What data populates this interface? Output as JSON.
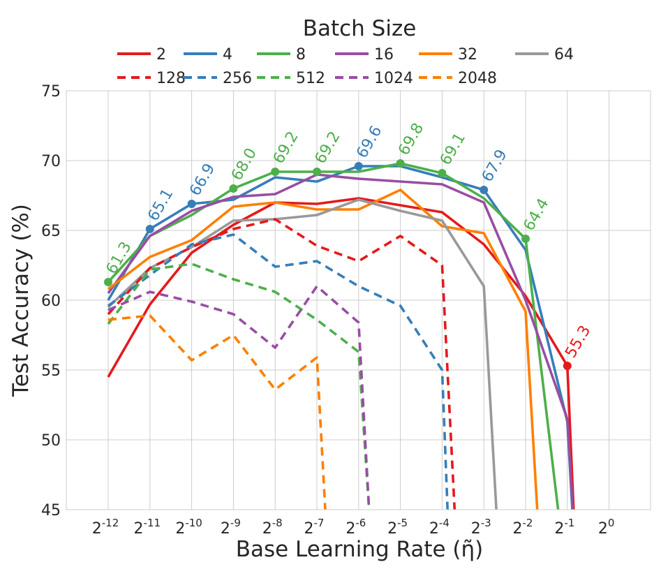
{
  "chart_data": {
    "type": "line",
    "xlabel": "Base Learning Rate (η̃)",
    "ylabel": "Test Accuracy (%)",
    "ylim": [
      45,
      75
    ],
    "yticks": [
      45,
      50,
      55,
      60,
      65,
      70,
      75
    ],
    "x_exponents": [
      -12,
      -11,
      -10,
      -9,
      -8,
      -7,
      -6,
      -5,
      -4,
      -3,
      -2,
      -1,
      0
    ],
    "x_tick_base": "2",
    "x_tick_exps": [
      "-12",
      "-11",
      "-10",
      "-9",
      "-8",
      "-7",
      "-6",
      "-5",
      "-4",
      "-3",
      "-2",
      "-1",
      "0"
    ],
    "grid": true,
    "legend_title": "Batch Size",
    "legend_position": "top",
    "series": [
      {
        "name": "2",
        "color": "#e41a1c",
        "dash": false,
        "x": [
          -12,
          -11,
          -10,
          -9,
          -8,
          -7,
          -6,
          -5,
          -4,
          -3,
          -2,
          -1,
          -0.85
        ],
        "y": [
          54.5,
          59.7,
          63.4,
          65.4,
          67.0,
          66.9,
          67.3,
          66.8,
          66.3,
          64.0,
          60.3,
          55.3,
          45
        ]
      },
      {
        "name": "4",
        "color": "#377eb8",
        "dash": false,
        "x": [
          -12,
          -11,
          -10,
          -9,
          -8,
          -7,
          -6,
          -5,
          -4,
          -3,
          -2,
          -1,
          -0.88
        ],
        "y": [
          60.0,
          65.1,
          66.9,
          67.2,
          68.8,
          68.5,
          69.6,
          69.6,
          68.8,
          67.9,
          63.6,
          51.3,
          45
        ]
      },
      {
        "name": "8",
        "color": "#4daf4a",
        "dash": false,
        "x": [
          -12,
          -11,
          -10,
          -9,
          -8,
          -7,
          -6,
          -5,
          -4,
          -3,
          -2,
          -1.22
        ],
        "y": [
          61.3,
          64.6,
          66.1,
          68.0,
          69.2,
          69.2,
          69.2,
          69.8,
          69.1,
          67.3,
          64.4,
          45
        ]
      },
      {
        "name": "16",
        "color": "#984ea3",
        "dash": false,
        "x": [
          -12,
          -11,
          -10,
          -9,
          -8,
          -7,
          -6,
          -5,
          -4,
          -3,
          -2,
          -1,
          -0.87
        ],
        "y": [
          60.5,
          64.6,
          66.4,
          67.4,
          67.6,
          69.0,
          68.7,
          68.5,
          68.3,
          67.0,
          60.0,
          51.5,
          45
        ]
      },
      {
        "name": "32",
        "color": "#ff7f00",
        "dash": false,
        "x": [
          -12,
          -11,
          -10,
          -9,
          -8,
          -7,
          -6,
          -5,
          -4,
          -3,
          -2,
          -1.72
        ],
        "y": [
          60.8,
          63.1,
          64.3,
          66.7,
          67.0,
          66.5,
          66.5,
          67.9,
          65.3,
          64.8,
          59.2,
          45
        ]
      },
      {
        "name": "64",
        "color": "#999999",
        "dash": false,
        "x": [
          -12,
          -11,
          -10,
          -9,
          -8,
          -7,
          -6,
          -5,
          -4,
          -3,
          -2.7
        ],
        "y": [
          59.5,
          62.3,
          63.8,
          65.7,
          65.8,
          66.1,
          67.2,
          66.4,
          65.7,
          61.0,
          45
        ]
      },
      {
        "name": "128",
        "color": "#e41a1c",
        "dash": true,
        "x": [
          -12,
          -11,
          -10,
          -9,
          -8,
          -7,
          -6,
          -5,
          -4,
          -3.7
        ],
        "y": [
          59.0,
          62.3,
          63.8,
          65.1,
          65.8,
          63.9,
          62.8,
          64.6,
          62.5,
          45
        ]
      },
      {
        "name": "256",
        "color": "#377eb8",
        "dash": true,
        "x": [
          -12,
          -11,
          -10,
          -9,
          -8,
          -7,
          -6,
          -5,
          -4,
          -3.87
        ],
        "y": [
          59.6,
          61.8,
          64.0,
          64.7,
          62.4,
          62.8,
          61.0,
          59.6,
          55.0,
          45
        ]
      },
      {
        "name": "512",
        "color": "#4daf4a",
        "dash": true,
        "x": [
          -12,
          -11,
          -10,
          -9,
          -8,
          -7,
          -6,
          -5.75
        ],
        "y": [
          58.3,
          62.2,
          62.6,
          61.5,
          60.6,
          58.6,
          56.3,
          45
        ]
      },
      {
        "name": "1024",
        "color": "#984ea3",
        "dash": true,
        "x": [
          -12,
          -11,
          -10,
          -9,
          -8,
          -7,
          -6,
          -5.75
        ],
        "y": [
          59.3,
          60.6,
          59.9,
          59.0,
          56.6,
          61.0,
          58.4,
          45
        ]
      },
      {
        "name": "2048",
        "color": "#ff7f00",
        "dash": true,
        "x": [
          -12,
          -11,
          -10,
          -9,
          -8,
          -7,
          -6.8
        ],
        "y": [
          58.6,
          58.9,
          55.7,
          57.5,
          53.6,
          55.9,
          45
        ]
      }
    ],
    "annotations": [
      {
        "x": -12,
        "y": 61.3,
        "label": "61.3",
        "color": "#4daf4a"
      },
      {
        "x": -11,
        "y": 65.1,
        "label": "65.1",
        "color": "#377eb8"
      },
      {
        "x": -10,
        "y": 66.9,
        "label": "66.9",
        "color": "#377eb8"
      },
      {
        "x": -9,
        "y": 68.0,
        "label": "68.0",
        "color": "#4daf4a"
      },
      {
        "x": -8,
        "y": 69.2,
        "label": "69.2",
        "color": "#4daf4a"
      },
      {
        "x": -7,
        "y": 69.2,
        "label": "69.2",
        "color": "#4daf4a"
      },
      {
        "x": -6,
        "y": 69.6,
        "label": "69.6",
        "color": "#377eb8"
      },
      {
        "x": -5,
        "y": 69.8,
        "label": "69.8",
        "color": "#4daf4a"
      },
      {
        "x": -4,
        "y": 69.1,
        "label": "69.1",
        "color": "#4daf4a"
      },
      {
        "x": -3,
        "y": 67.9,
        "label": "67.9",
        "color": "#377eb8"
      },
      {
        "x": -2,
        "y": 64.4,
        "label": "64.4",
        "color": "#4daf4a"
      },
      {
        "x": -1,
        "y": 55.3,
        "label": "55.3",
        "color": "#e41a1c"
      }
    ]
  }
}
